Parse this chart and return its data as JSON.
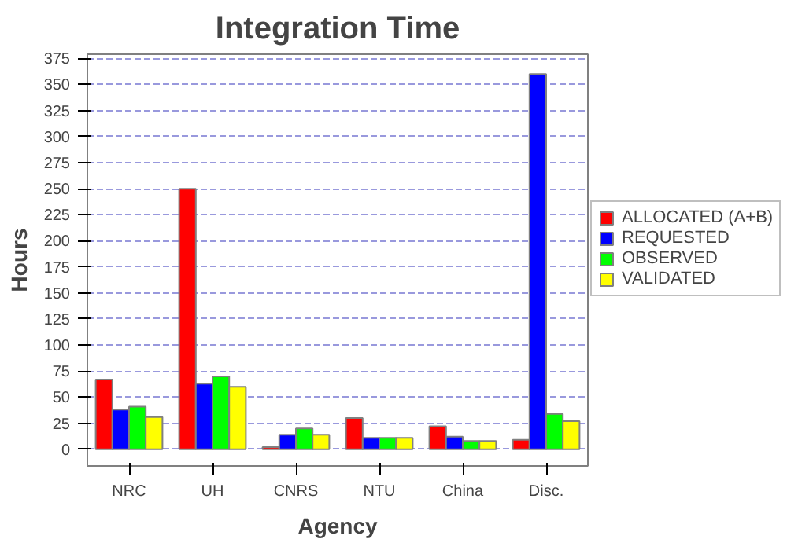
{
  "chart_data": {
    "type": "bar",
    "title": "Integration Time",
    "xlabel": "Agency",
    "ylabel": "Hours",
    "categories": [
      "NRC",
      "UH",
      "CNRS",
      "NTU",
      "China",
      "Disc."
    ],
    "series": [
      {
        "name": "ALLOCATED (A+B)",
        "color": "#ff0000",
        "values": [
          67,
          250,
          2,
          30,
          22,
          9
        ]
      },
      {
        "name": "REQUESTED",
        "color": "#0000ff",
        "values": [
          38,
          63,
          14,
          11,
          12,
          360
        ]
      },
      {
        "name": "OBSERVED",
        "color": "#00ff00",
        "values": [
          41,
          70,
          20,
          11,
          8,
          34
        ]
      },
      {
        "name": "VALIDATED",
        "color": "#ffff00",
        "values": [
          31,
          60,
          14,
          11,
          8,
          27
        ]
      }
    ],
    "ylim": [
      -16,
      379
    ],
    "yticks": [
      0,
      25,
      50,
      75,
      100,
      125,
      150,
      175,
      200,
      225,
      250,
      275,
      300,
      325,
      350,
      375
    ],
    "grid": "y",
    "legend": "right"
  }
}
